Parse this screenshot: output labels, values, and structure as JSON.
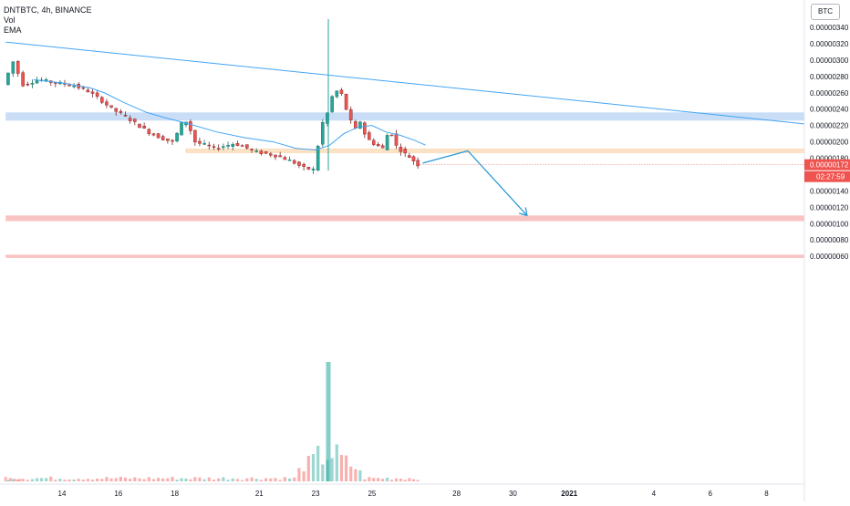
{
  "header": {
    "symbol_line": "DNTBTC, 4h, BINANCE",
    "indicator_vol": "Vol",
    "indicator_ema": "EMA",
    "currency_badge": "BTC"
  },
  "colors": {
    "up": "#26a69a",
    "down": "#ef5350",
    "wick_up": "#1b6b63",
    "wick_down": "#7a2626",
    "ema": "#42a5f5",
    "trendline": "#42a5f5",
    "projection": "#2d9bd6",
    "resistance_zone": "#c6dbf7",
    "pivot_zone": "#fde2c4",
    "support_zone": "#f9c0c0",
    "price_tag": "#ef5350",
    "axis_text": "#131722"
  },
  "chart_data": {
    "type": "candlestick",
    "title": "DNTBTC, 4h, BINANCE",
    "x_axis": {
      "tick_labels": [
        {
          "label": "14",
          "day": 14
        },
        {
          "label": "16",
          "day": 16
        },
        {
          "label": "18",
          "day": 18
        },
        {
          "label": "21",
          "day": 21
        },
        {
          "label": "23",
          "day": 23
        },
        {
          "label": "25",
          "day": 25
        },
        {
          "label": "28",
          "day": 28
        },
        {
          "label": "30",
          "day": 30
        },
        {
          "label": "2021",
          "day": 32,
          "bold": true
        },
        {
          "label": "4",
          "day": 35
        },
        {
          "label": "6",
          "day": 37
        },
        {
          "label": "8",
          "day": 39
        }
      ]
    },
    "y_axis": {
      "range": [
        5.4e-07,
        3.5e-06
      ],
      "tick_labels": [
        "0.00000340",
        "0.00000320",
        "0.00000300",
        "0.00000280",
        "0.00000260",
        "0.00000240",
        "0.00000220",
        "0.00000200",
        "0.00000180",
        "0.00000160",
        "0.00000140",
        "0.00000120",
        "0.00000100",
        "0.00000080",
        "0.00000060"
      ],
      "tick_values": [
        340,
        320,
        300,
        280,
        260,
        240,
        220,
        200,
        180,
        160,
        140,
        120,
        100,
        80,
        60
      ],
      "unit_scale": 1e-09
    },
    "current_price": {
      "label": "0.00000172",
      "value": 172
    },
    "countdown": "02:27:59",
    "segments": [
      {
        "start_day": 12.0,
        "end_day": 12.7,
        "points": [
          270,
          298,
          270
        ]
      },
      {
        "start_day": 12.7,
        "end_day": 15.0,
        "points": [
          270,
          276,
          272,
          270,
          262
        ]
      },
      {
        "start_day": 15.0,
        "end_day": 18.0,
        "points": [
          262,
          252,
          240,
          232,
          222,
          212,
          205,
          200
        ]
      },
      {
        "start_day": 18.0,
        "end_day": 18.8,
        "points": [
          200,
          210,
          222,
          225,
          214,
          200
        ]
      },
      {
        "start_day": 18.8,
        "end_day": 23.0,
        "points": [
          200,
          196,
          192,
          195,
          198,
          194,
          188,
          186,
          184,
          180,
          175,
          168,
          166
        ]
      },
      {
        "start_day": 23.0,
        "end_day": 23.5,
        "points": [
          166,
          188,
          210,
          230,
          235
        ]
      },
      {
        "start_day": 23.5,
        "end_day": 24.5,
        "points": [
          235,
          255,
          262,
          258,
          240,
          225,
          215
        ]
      },
      {
        "start_day": 24.5,
        "end_day": 26.1,
        "points": [
          215,
          225,
          210,
          202,
          198,
          195,
          192,
          208,
          210,
          195,
          190
        ]
      },
      {
        "start_day": 26.1,
        "end_day": 26.7,
        "points": [
          190,
          186,
          183,
          180,
          176,
          172
        ]
      }
    ],
    "ema_points": [
      {
        "day": 13.0,
        "value": 276
      },
      {
        "day": 14.0,
        "value": 272
      },
      {
        "day": 15.0,
        "value": 266
      },
      {
        "day": 15.5,
        "value": 260
      },
      {
        "day": 16.2,
        "value": 248
      },
      {
        "day": 17.0,
        "value": 236
      },
      {
        "day": 17.6,
        "value": 230
      },
      {
        "day": 18.5,
        "value": 222
      },
      {
        "day": 19.5,
        "value": 212
      },
      {
        "day": 20.5,
        "value": 205
      },
      {
        "day": 21.5,
        "value": 200
      },
      {
        "day": 22.3,
        "value": 192
      },
      {
        "day": 23.0,
        "value": 190
      },
      {
        "day": 23.5,
        "value": 196
      },
      {
        "day": 24.0,
        "value": 210
      },
      {
        "day": 24.5,
        "value": 218
      },
      {
        "day": 25.0,
        "value": 220
      },
      {
        "day": 25.5,
        "value": 212
      },
      {
        "day": 26.0,
        "value": 208
      },
      {
        "day": 26.5,
        "value": 202
      },
      {
        "day": 26.9,
        "value": 196
      }
    ],
    "spike": {
      "day": 23.45,
      "high": 350,
      "low": 165,
      "volume": 100
    },
    "trendline": [
      {
        "day": 12.0,
        "value": 322
      },
      {
        "day": 41.0,
        "value": 222
      }
    ],
    "projection": [
      {
        "day": 26.8,
        "value": 174
      },
      {
        "day": 28.4,
        "value": 189
      },
      {
        "day": 30.5,
        "value": 110
      }
    ],
    "zones": [
      {
        "name": "resistance",
        "start_day": 12.0,
        "end_day": 41.0,
        "low": 226,
        "high": 236
      },
      {
        "name": "pivot",
        "start_day": 18.4,
        "end_day": 41.0,
        "low": 187,
        "high": 191
      },
      {
        "name": "support",
        "start_day": 12.0,
        "end_day": 41.0,
        "low": 103,
        "high": 110
      },
      {
        "name": "low-support",
        "start_day": 12.0,
        "end_day": 41.0,
        "low": 58,
        "high": 62
      }
    ]
  }
}
